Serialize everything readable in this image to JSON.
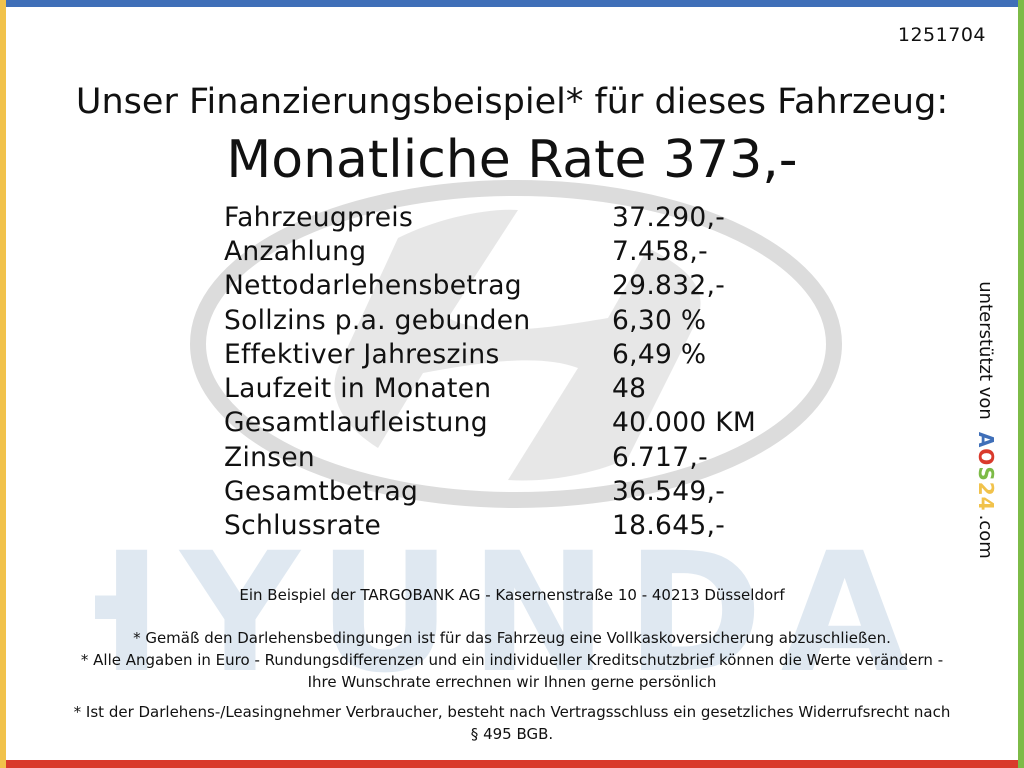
{
  "reference_number": "1251704",
  "headline": "Unser Finanzierungsbeispiel* für dieses Fahrzeug:",
  "monthly_rate": "Monatliche Rate 373,-",
  "financing": {
    "rows": [
      {
        "label": "Fahrzeugpreis",
        "value": "37.290,-"
      },
      {
        "label": "Anzahlung",
        "value": "7.458,-"
      },
      {
        "label": "Nettodarlehensbetrag",
        "value": "29.832,-"
      },
      {
        "label": "Sollzins p.a. gebunden",
        "value": "6,30 %"
      },
      {
        "label": "Effektiver Jahreszins",
        "value": "6,49 %"
      },
      {
        "label": "Laufzeit in Monaten",
        "value": "48"
      },
      {
        "label": "Gesamtlaufleistung",
        "value": "40.000 KM"
      },
      {
        "label": "Zinsen",
        "value": "6.717,-"
      },
      {
        "label": "Gesamtbetrag",
        "value": "36.549,-"
      },
      {
        "label": "Schlussrate",
        "value": "18.645,-"
      }
    ]
  },
  "lender_note": "Ein Beispiel der TARGOBANK AG - Kasernenstraße 10 - 40213 Düsseldorf",
  "notes": [
    "* Gemäß den Darlehensbedingungen ist für das Fahrzeug eine Vollkaskoversicherung abzuschließen.",
    "* Alle Angaben in Euro - Rundungsdifferenzen und ein individueller Kreditschutzbrief können die Werte verändern - Ihre Wunschrate errechnen wir Ihnen gerne persönlich",
    "* Ist der Darlehens-/Leasingnehmer Verbraucher, besteht nach Vertragsschluss ein gesetzliches Widerrufsrecht nach § 495 BGB."
  ],
  "sidebar": {
    "supported_by": "unterstützt von",
    "brand_parts": [
      "A",
      "O",
      "S",
      "24"
    ],
    "brand_suffix": ".com"
  },
  "watermark": {
    "brand_name": "HYUNDAI"
  },
  "colors": {
    "border_top": "#3f6fb8",
    "border_bottom": "#d93a2c",
    "border_left": "#f1c24b",
    "border_right": "#7dbb47",
    "watermark_text": "#8fb0cf",
    "watermark_logo": "#d9d9d9"
  }
}
